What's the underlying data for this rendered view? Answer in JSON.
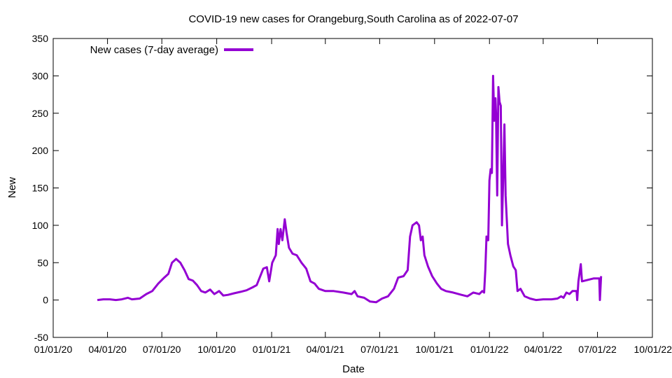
{
  "chart_data": {
    "type": "line",
    "title": "COVID-19 new cases for Orangeburg,South Carolina as of 2022-07-07",
    "xlabel": "Date",
    "ylabel": "New",
    "x_range": [
      "2020-01-01",
      "2022-10-01"
    ],
    "ylim": [
      -50,
      350
    ],
    "y_ticks": [
      -50,
      0,
      50,
      100,
      150,
      200,
      250,
      300,
      350
    ],
    "x_ticks": [
      "2020-01-01",
      "2020-04-01",
      "2020-07-01",
      "2020-10-01",
      "2021-01-01",
      "2021-04-01",
      "2021-07-01",
      "2021-10-01",
      "2022-01-01",
      "2022-04-01",
      "2022-07-01",
      "2022-10-01"
    ],
    "x_tick_labels": [
      "01/01/20",
      "04/01/20",
      "07/01/20",
      "10/01/20",
      "01/01/21",
      "04/01/21",
      "07/01/21",
      "10/01/21",
      "01/01/22",
      "04/01/22",
      "07/01/22",
      "10/01/22"
    ],
    "grid": false,
    "legend_position": "top-left",
    "series": [
      {
        "name": "New cases (7-day average)",
        "color": "#9400d3",
        "points": [
          [
            "2020-03-15",
            0
          ],
          [
            "2020-03-25",
            1
          ],
          [
            "2020-04-05",
            1
          ],
          [
            "2020-04-15",
            0
          ],
          [
            "2020-04-25",
            1
          ],
          [
            "2020-05-05",
            3
          ],
          [
            "2020-05-12",
            1
          ],
          [
            "2020-05-25",
            2
          ],
          [
            "2020-06-05",
            8
          ],
          [
            "2020-06-15",
            12
          ],
          [
            "2020-06-25",
            22
          ],
          [
            "2020-07-05",
            30
          ],
          [
            "2020-07-12",
            35
          ],
          [
            "2020-07-18",
            50
          ],
          [
            "2020-07-25",
            55
          ],
          [
            "2020-08-01",
            50
          ],
          [
            "2020-08-08",
            40
          ],
          [
            "2020-08-15",
            28
          ],
          [
            "2020-08-22",
            26
          ],
          [
            "2020-08-29",
            20
          ],
          [
            "2020-09-05",
            12
          ],
          [
            "2020-09-12",
            10
          ],
          [
            "2020-09-20",
            14
          ],
          [
            "2020-09-27",
            8
          ],
          [
            "2020-10-05",
            12
          ],
          [
            "2020-10-12",
            6
          ],
          [
            "2020-10-20",
            7
          ],
          [
            "2020-10-30",
            9
          ],
          [
            "2020-11-10",
            11
          ],
          [
            "2020-11-20",
            13
          ],
          [
            "2020-11-30",
            17
          ],
          [
            "2020-12-07",
            20
          ],
          [
            "2020-12-12",
            30
          ],
          [
            "2020-12-18",
            42
          ],
          [
            "2020-12-24",
            44
          ],
          [
            "2020-12-28",
            25
          ],
          [
            "2021-01-02",
            50
          ],
          [
            "2021-01-08",
            60
          ],
          [
            "2021-01-11",
            95
          ],
          [
            "2021-01-13",
            75
          ],
          [
            "2021-01-16",
            95
          ],
          [
            "2021-01-19",
            80
          ],
          [
            "2021-01-23",
            108
          ],
          [
            "2021-01-26",
            90
          ],
          [
            "2021-01-30",
            70
          ],
          [
            "2021-02-05",
            62
          ],
          [
            "2021-02-12",
            60
          ],
          [
            "2021-02-20",
            50
          ],
          [
            "2021-02-28",
            42
          ],
          [
            "2021-03-07",
            25
          ],
          [
            "2021-03-14",
            22
          ],
          [
            "2021-03-21",
            15
          ],
          [
            "2021-04-01",
            12
          ],
          [
            "2021-04-15",
            12
          ],
          [
            "2021-05-01",
            10
          ],
          [
            "2021-05-15",
            8
          ],
          [
            "2021-05-20",
            12
          ],
          [
            "2021-05-25",
            5
          ],
          [
            "2021-06-05",
            3
          ],
          [
            "2021-06-15",
            -2
          ],
          [
            "2021-06-25",
            -3
          ],
          [
            "2021-07-05",
            2
          ],
          [
            "2021-07-15",
            5
          ],
          [
            "2021-07-25",
            15
          ],
          [
            "2021-08-01",
            30
          ],
          [
            "2021-08-10",
            32
          ],
          [
            "2021-08-17",
            40
          ],
          [
            "2021-08-21",
            85
          ],
          [
            "2021-08-25",
            100
          ],
          [
            "2021-09-01",
            104
          ],
          [
            "2021-09-05",
            100
          ],
          [
            "2021-09-08",
            80
          ],
          [
            "2021-09-11",
            85
          ],
          [
            "2021-09-14",
            60
          ],
          [
            "2021-09-20",
            45
          ],
          [
            "2021-09-27",
            32
          ],
          [
            "2021-10-05",
            22
          ],
          [
            "2021-10-12",
            15
          ],
          [
            "2021-10-20",
            12
          ],
          [
            "2021-11-01",
            10
          ],
          [
            "2021-11-15",
            7
          ],
          [
            "2021-11-25",
            5
          ],
          [
            "2021-12-05",
            10
          ],
          [
            "2021-12-15",
            8
          ],
          [
            "2021-12-20",
            12
          ],
          [
            "2021-12-23",
            10
          ],
          [
            "2021-12-25",
            40
          ],
          [
            "2021-12-27",
            85
          ],
          [
            "2021-12-30",
            80
          ],
          [
            "2022-01-01",
            160
          ],
          [
            "2022-01-03",
            175
          ],
          [
            "2022-01-05",
            170
          ],
          [
            "2022-01-07",
            300
          ],
          [
            "2022-01-09",
            240
          ],
          [
            "2022-01-11",
            270
          ],
          [
            "2022-01-12",
            250
          ],
          [
            "2022-01-14",
            140
          ],
          [
            "2022-01-16",
            285
          ],
          [
            "2022-01-18",
            265
          ],
          [
            "2022-01-20",
            260
          ],
          [
            "2022-01-22",
            100
          ],
          [
            "2022-01-24",
            165
          ],
          [
            "2022-01-26",
            235
          ],
          [
            "2022-01-28",
            140
          ],
          [
            "2022-02-01",
            75
          ],
          [
            "2022-02-05",
            60
          ],
          [
            "2022-02-10",
            45
          ],
          [
            "2022-02-14",
            40
          ],
          [
            "2022-02-17",
            12
          ],
          [
            "2022-02-22",
            15
          ],
          [
            "2022-03-01",
            5
          ],
          [
            "2022-03-10",
            2
          ],
          [
            "2022-03-20",
            0
          ],
          [
            "2022-04-01",
            1
          ],
          [
            "2022-04-15",
            1
          ],
          [
            "2022-04-25",
            2
          ],
          [
            "2022-05-01",
            5
          ],
          [
            "2022-05-05",
            3
          ],
          [
            "2022-05-10",
            10
          ],
          [
            "2022-05-15",
            8
          ],
          [
            "2022-05-20",
            12
          ],
          [
            "2022-05-27",
            12
          ],
          [
            "2022-05-28",
            0
          ],
          [
            "2022-05-30",
            25
          ],
          [
            "2022-06-03",
            48
          ],
          [
            "2022-06-05",
            25
          ],
          [
            "2022-06-15",
            27
          ],
          [
            "2022-06-25",
            29
          ],
          [
            "2022-07-04",
            29
          ],
          [
            "2022-07-05",
            0
          ],
          [
            "2022-07-07",
            32
          ]
        ]
      }
    ]
  }
}
